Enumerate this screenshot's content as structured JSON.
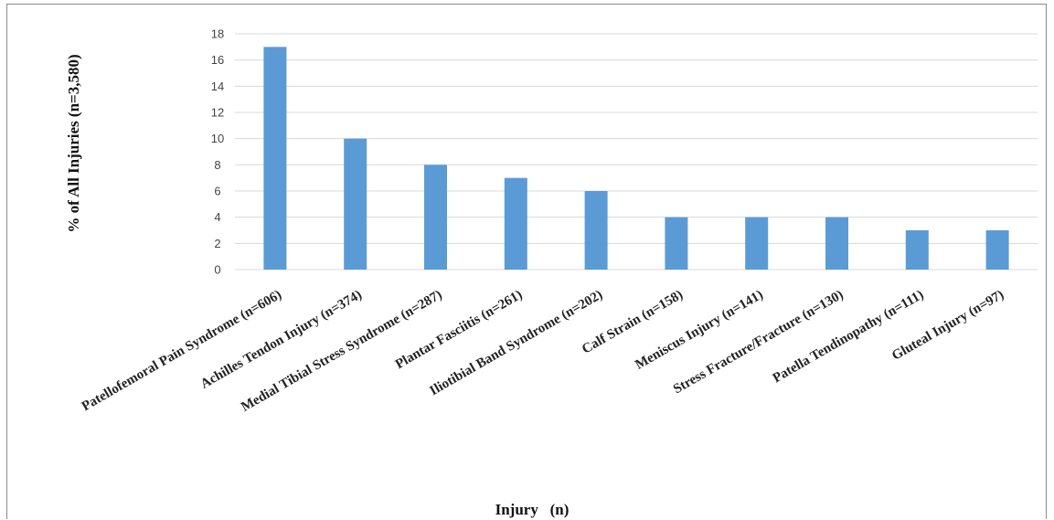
{
  "chart_data": {
    "type": "bar",
    "categories": [
      "Patellofemoral Pain Syndrome (n=606)",
      "Achilles Tendon Injury (n=374)",
      "Medial Tibial Stress Syndrome (n=287)",
      "Plantar Fasciitis (n=261)",
      "Iliotibial Band Syndrome (n=202)",
      "Calf Strain (n=158)",
      "Meniscus Injury (n=141)",
      "Stress Fracture/Fracture (n=130)",
      "Patella Tendinopathy (n=111)",
      "Gluteal Injury (n=97)"
    ],
    "values": [
      17,
      10,
      8,
      7,
      6,
      4,
      4,
      4,
      3,
      3
    ],
    "yticks": [
      "0",
      "2",
      "4",
      "6",
      "8",
      "10",
      "12",
      "14",
      "16",
      "18"
    ],
    "ylim": [
      0,
      18
    ],
    "xlabel": "Injury   (n)",
    "ylabel": "% of All Injuries  (n=3,580)",
    "grid": true,
    "bar_color": "#5b9bd5"
  }
}
